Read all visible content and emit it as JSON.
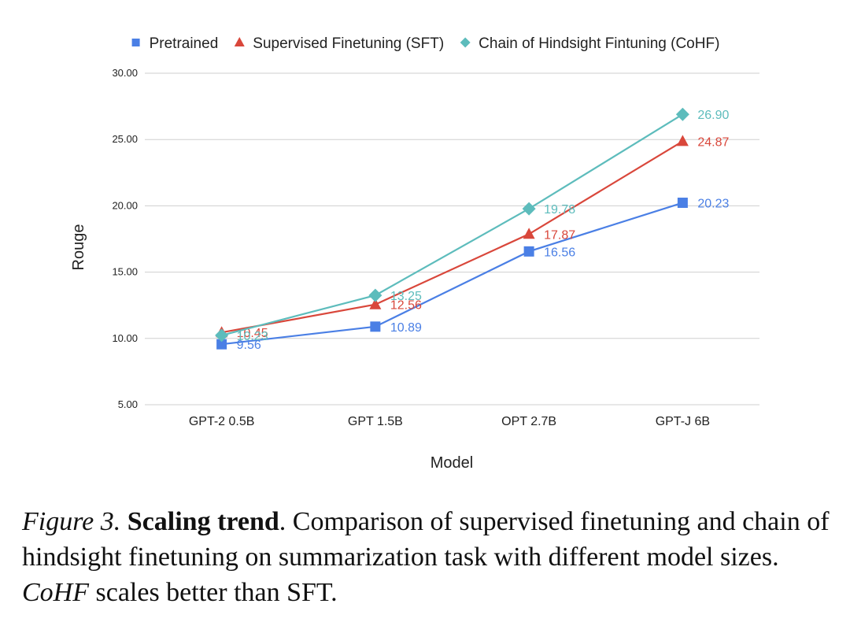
{
  "chart_data": {
    "type": "line",
    "categories": [
      "GPT-2 0.5B",
      "GPT 1.5B",
      "OPT 2.7B",
      "GPT-J 6B"
    ],
    "series": [
      {
        "name": "Pretrained",
        "values": [
          9.56,
          10.89,
          16.56,
          20.23
        ],
        "labels": [
          "9.56",
          "10.89",
          "16.56",
          "20.23"
        ],
        "color": "#4a7fe5",
        "marker": "square"
      },
      {
        "name": "Supervised Finetuning (SFT)",
        "values": [
          10.45,
          12.56,
          17.87,
          24.87
        ],
        "labels": [
          "10.45",
          "12.56",
          "17.87",
          "24.87"
        ],
        "color": "#d9473b",
        "marker": "triangle"
      },
      {
        "name": "Chain of Hindsight Fintuning (CoHF)",
        "values": [
          10.23,
          13.25,
          19.78,
          26.9
        ],
        "labels": [
          "10.23",
          "13.25",
          "19.78",
          "26.90"
        ],
        "color": "#5dbcbc",
        "marker": "diamond"
      }
    ],
    "xlabel": "Model",
    "ylabel": "Rouge",
    "ylim": [
      5,
      30
    ],
    "yticks": [
      "5.00",
      "10.00",
      "15.00",
      "20.00",
      "25.00",
      "30.00"
    ],
    "grid": true,
    "legend_position": "top"
  },
  "caption": {
    "label": "Figure 3.",
    "title": "Scaling trend",
    "text_1": ". Comparison of supervised finetuning and chain of hindsight finetuning on summarization task with different model sizes. ",
    "emph": "CoHF",
    "text_2": " scales better than SFT."
  }
}
